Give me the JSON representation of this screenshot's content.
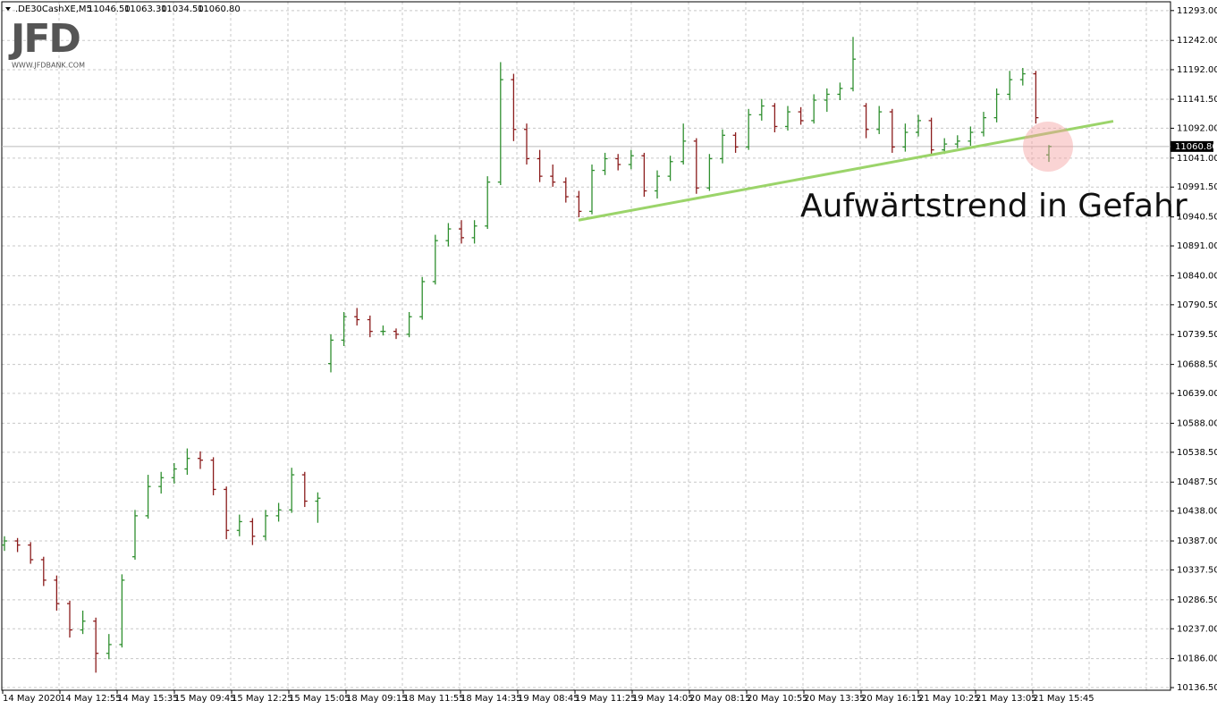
{
  "chart_data": {
    "type": "ohlc",
    "header": {
      "symbol": ".DE30CashXE,M5",
      "ohlc": [
        {
          "value": 11046.5,
          "label": "11046.50"
        },
        {
          "value": 11063.3,
          "label": "11063.30"
        },
        {
          "value": 11034.5,
          "label": "11034.50"
        },
        {
          "value": 11060.8,
          "label": "11060.80"
        }
      ]
    },
    "logo": {
      "mark": "JFD",
      "site": "WWW.JFDBANK.COM"
    },
    "annotation": "Aufwärtstrend in Gefahr",
    "up_color": "#2f8f2f",
    "down_color": "#8b1c1c",
    "trend_line": {
      "start": 10935,
      "end": 11104,
      "color": "#9bd46a"
    },
    "current_price": {
      "value": 11060.8,
      "label": "11060.80"
    },
    "ylim": [
      10132,
      11308
    ],
    "yticks": [
      {
        "value": 11293,
        "label": "11293.00"
      },
      {
        "value": 11242,
        "label": "11242.00"
      },
      {
        "value": 11192,
        "label": "11192.00"
      },
      {
        "value": 11141.5,
        "label": "11141.50"
      },
      {
        "value": 11092,
        "label": "11092.00"
      },
      {
        "value": 11041,
        "label": "11041.00"
      },
      {
        "value": 10991.5,
        "label": "10991.50"
      },
      {
        "value": 10940.5,
        "label": "10940.50"
      },
      {
        "value": 10891,
        "label": "10891.00"
      },
      {
        "value": 10840,
        "label": "10840.00"
      },
      {
        "value": 10790.5,
        "label": "10790.50"
      },
      {
        "value": 10739.5,
        "label": "10739.50"
      },
      {
        "value": 10688.5,
        "label": "10688.50"
      },
      {
        "value": 10639,
        "label": "10639.00"
      },
      {
        "value": 10588,
        "label": "10588.00"
      },
      {
        "value": 10538.5,
        "label": "10538.50"
      },
      {
        "value": 10487.5,
        "label": "10487.50"
      },
      {
        "value": 10438,
        "label": "10438.00"
      },
      {
        "value": 10387,
        "label": "10387.00"
      },
      {
        "value": 10337.5,
        "label": "10337.50"
      },
      {
        "value": 10286.5,
        "label": "10286.50"
      },
      {
        "value": 10237,
        "label": "10237.00"
      },
      {
        "value": 10186,
        "label": "10186.00"
      },
      {
        "value": 10136.5,
        "label": "10136.50"
      }
    ],
    "x_labels": [
      "14 May 2020",
      "14 May 12:55",
      "14 May 15:35",
      "15 May 09:45",
      "15 May 12:25",
      "15 May 15:05",
      "18 May 09:15",
      "18 May 11:55",
      "18 May 14:35",
      "19 May 08:45",
      "19 May 11:25",
      "19 May 14:05",
      "20 May 08:15",
      "20 May 10:55",
      "20 May 13:35",
      "20 May 16:15",
      "21 May 10:25",
      "21 May 13:05",
      "21 May 15:45"
    ],
    "bars": [
      [
        10380,
        10395,
        10370,
        10387
      ],
      [
        10387,
        10392,
        10368,
        10380
      ],
      [
        10380,
        10385,
        10348,
        10355
      ],
      [
        10355,
        10360,
        10310,
        10320
      ],
      [
        10320,
        10328,
        10268,
        10280
      ],
      [
        10280,
        10285,
        10222,
        10235
      ],
      [
        10235,
        10268,
        10228,
        10250
      ],
      [
        10250,
        10256,
        10162,
        10195
      ],
      [
        10195,
        10228,
        10185,
        10210
      ],
      [
        10210,
        10330,
        10205,
        10320
      ],
      [
        10360,
        10440,
        10355,
        10430
      ],
      [
        10430,
        10500,
        10425,
        10480
      ],
      [
        10480,
        10505,
        10468,
        10495
      ],
      [
        10495,
        10520,
        10485,
        10510
      ],
      [
        10510,
        10545,
        10500,
        10528
      ],
      [
        10528,
        10540,
        10510,
        10525
      ],
      [
        10525,
        10530,
        10465,
        10475
      ],
      [
        10475,
        10480,
        10390,
        10405
      ],
      [
        10405,
        10432,
        10395,
        10420
      ],
      [
        10420,
        10426,
        10380,
        10395
      ],
      [
        10395,
        10440,
        10388,
        10430
      ],
      [
        10430,
        10452,
        10420,
        10440
      ],
      [
        10440,
        10512,
        10435,
        10500
      ],
      [
        10500,
        10505,
        10445,
        10455
      ],
      [
        10455,
        10470,
        10418,
        10460
      ],
      [
        10690,
        10740,
        10675,
        10730
      ],
      [
        10730,
        10778,
        10720,
        10770
      ],
      [
        10770,
        10785,
        10755,
        10765
      ],
      [
        10765,
        10772,
        10735,
        10745
      ],
      [
        10745,
        10755,
        10738,
        10745
      ],
      [
        10745,
        10750,
        10732,
        10740
      ],
      [
        10740,
        10778,
        10735,
        10770
      ],
      [
        10770,
        10838,
        10765,
        10830
      ],
      [
        10830,
        10910,
        10825,
        10900
      ],
      [
        10900,
        10930,
        10890,
        10920
      ],
      [
        10920,
        10935,
        10895,
        10905
      ],
      [
        10905,
        10935,
        10895,
        10925
      ],
      [
        10925,
        11010,
        10920,
        11000
      ],
      [
        11000,
        11205,
        10995,
        11175
      ],
      [
        11175,
        11185,
        11070,
        11090
      ],
      [
        11090,
        11100,
        11030,
        11040
      ],
      [
        11040,
        11055,
        11000,
        11010
      ],
      [
        11010,
        11030,
        10992,
        11000
      ],
      [
        11000,
        11008,
        10965,
        10975
      ],
      [
        10975,
        10985,
        10940,
        10950
      ],
      [
        10950,
        11030,
        10945,
        11020
      ],
      [
        11020,
        11050,
        11012,
        11040
      ],
      [
        11040,
        11048,
        11020,
        11030
      ],
      [
        11030,
        11055,
        11022,
        11045
      ],
      [
        11045,
        11050,
        10975,
        10985
      ],
      [
        10985,
        11020,
        10972,
        11010
      ],
      [
        11010,
        11045,
        11002,
        11035
      ],
      [
        11035,
        11100,
        11030,
        11070
      ],
      [
        11070,
        11075,
        10980,
        10990
      ],
      [
        10990,
        11048,
        10985,
        11040
      ],
      [
        11040,
        11090,
        11032,
        11080
      ],
      [
        11080,
        11085,
        11050,
        11060
      ],
      [
        11060,
        11125,
        11055,
        11115
      ],
      [
        11115,
        11142,
        11105,
        11130
      ],
      [
        11130,
        11135,
        11085,
        11095
      ],
      [
        11095,
        11130,
        11088,
        11120
      ],
      [
        11120,
        11128,
        11098,
        11105
      ],
      [
        11105,
        11150,
        11100,
        11140
      ],
      [
        11140,
        11160,
        11120,
        11150
      ],
      [
        11150,
        11170,
        11140,
        11160
      ],
      [
        11160,
        11248,
        11155,
        11210
      ],
      [
        11130,
        11135,
        11075,
        11090
      ],
      [
        11090,
        11130,
        11082,
        11120
      ],
      [
        11120,
        11125,
        11050,
        11060
      ],
      [
        11060,
        11100,
        11052,
        11085
      ],
      [
        11085,
        11115,
        11078,
        11105
      ],
      [
        11105,
        11110,
        11045,
        11055
      ],
      [
        11055,
        11075,
        11048,
        11065
      ],
      [
        11065,
        11080,
        11058,
        11070
      ],
      [
        11070,
        11095,
        11062,
        11085
      ],
      [
        11085,
        11120,
        11078,
        11110
      ],
      [
        11110,
        11160,
        11102,
        11150
      ],
      [
        11150,
        11190,
        11140,
        11175
      ],
      [
        11175,
        11195,
        11165,
        11185
      ],
      [
        11185,
        11190,
        11100,
        11110
      ],
      [
        11046.5,
        11063.3,
        11034.5,
        11060.8
      ]
    ]
  }
}
